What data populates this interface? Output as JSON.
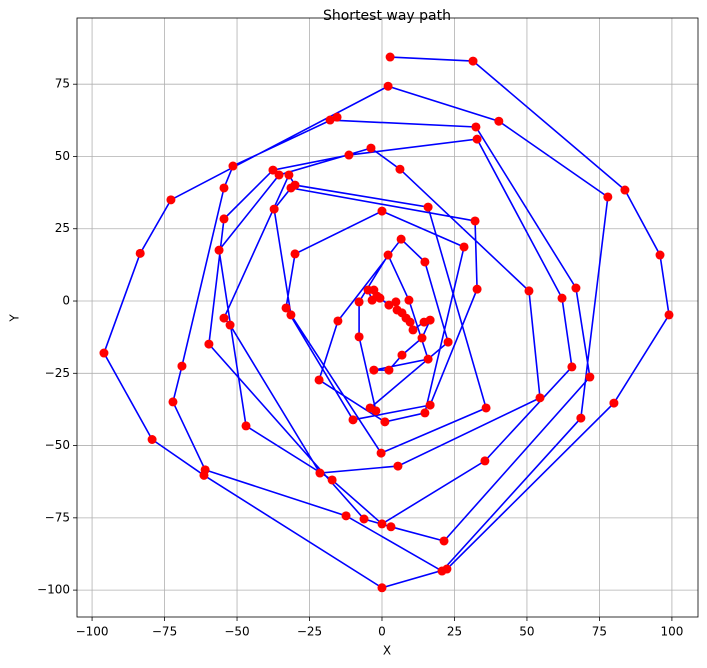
{
  "chart_data": {
    "type": "line",
    "title": "Shortest way path",
    "xlabel": "X",
    "ylabel": "Y",
    "line_color": "#0000ff",
    "marker_color": "#ff0000",
    "grid": true,
    "xlim": [
      -105.2,
      109
    ],
    "ylim": [
      -109.3,
      97.9
    ],
    "xticks": [
      {
        "value": -100,
        "label": "−100"
      },
      {
        "value": -75,
        "label": "−75"
      },
      {
        "value": -50,
        "label": "−50"
      },
      {
        "value": -25,
        "label": "−25"
      },
      0,
      25,
      50,
      75,
      100
    ],
    "yticks": [
      {
        "value": -100,
        "label": "−100"
      },
      {
        "value": -75,
        "label": "−75"
      },
      {
        "value": -50,
        "label": "−50"
      },
      {
        "value": -25,
        "label": "−25"
      },
      0,
      25,
      50,
      75
    ],
    "x": [
      2.8,
      31.4,
      83.8,
      95.9,
      99.0,
      80.0,
      22.4,
      0,
      -61.4,
      -79.3,
      -95.9,
      -83.4,
      -72.8,
      2.1,
      40.3,
      77.9,
      68.6,
      20.7,
      -12.4,
      -61.0,
      -72.1,
      -69.0,
      -54.5,
      -51.4,
      -15.5,
      -17.9,
      32.4,
      66.9,
      71.7,
      21.4,
      3.1,
      -6.2,
      -59.7,
      -54.5,
      -37.6,
      -11.4,
      32.8,
      62.1,
      65.5,
      35.5,
      0,
      -17.2,
      -46.9,
      -56.2,
      -35.5,
      -3.8,
      6.2,
      50.7,
      54.5,
      5.5,
      -21.4,
      -52.4,
      -54.5,
      -32.1,
      -30,
      15.9,
      35.9,
      -0.3,
      -31.4,
      -37.2,
      -31.4,
      32.1,
      32.8,
      16.6,
      -10,
      -33.1,
      -30,
      0,
      28.3,
      14.8,
      1,
      -21.7,
      -15.2,
      6.6,
      14.8,
      22.8,
      -4.1,
      -2.1,
      -7.9,
      -7.9,
      2.1,
      9.3,
      15.9,
      -2.8,
      2.4,
      6.9,
      13.8,
      16.6,
      14.5,
      10.7,
      9.7,
      8.3,
      6.9,
      5.2,
      4.8,
      2.4,
      -0.7,
      -1.7,
      -2.8,
      -4.8,
      -3.4
    ],
    "values": [
      84.4,
      83.0,
      38.4,
      15.9,
      -4.8,
      -35.3,
      -92.7,
      -99.2,
      -60.3,
      -47.9,
      -18.0,
      16.5,
      35.0,
      74.3,
      62.2,
      36.0,
      -40.5,
      -93.4,
      -74.3,
      -58.4,
      -34.9,
      -22.5,
      39.1,
      46.7,
      63.6,
      62.6,
      60.2,
      4.5,
      -26.3,
      -83.0,
      -78.1,
      -75.4,
      -14.9,
      28.4,
      45.3,
      50.5,
      56.0,
      1.0,
      -22.8,
      -55.3,
      -77.1,
      -61.9,
      -43.2,
      17.6,
      43.6,
      52.9,
      45.6,
      3.5,
      -33.5,
      -57.1,
      -59.5,
      -8.3,
      -5.9,
      43.6,
      40.1,
      32.5,
      -37.0,
      -52.6,
      -4.8,
      31.8,
      39.1,
      27.7,
      4.1,
      -36.0,
      -41.1,
      -2.4,
      16.3,
      31.1,
      18.7,
      -38.7,
      -41.8,
      -27.3,
      -6.9,
      21.4,
      13.5,
      -14.2,
      -37.0,
      -38.0,
      -12.4,
      -0.3,
      15.9,
      0.3,
      -20.1,
      -23.9,
      -23.9,
      -18.7,
      -12.8,
      -6.6,
      -7.3,
      -10.0,
      -7.3,
      -5.9,
      -4.1,
      -3.1,
      -0.3,
      -1.4,
      1.0,
      1.7,
      3.8,
      3.8,
      0.3
    ]
  }
}
